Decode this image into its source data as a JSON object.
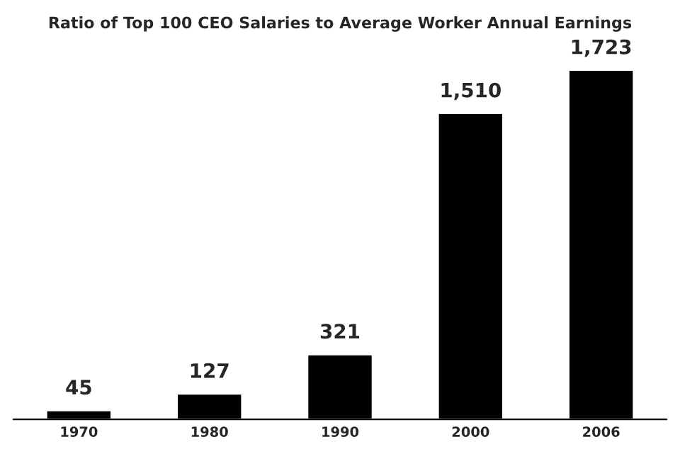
{
  "chart_data": {
    "type": "bar",
    "title": "Ratio of Top 100 CEO Salaries to Average Worker Annual Earnings",
    "categories": [
      "1970",
      "1980",
      "1990",
      "2000",
      "2006"
    ],
    "values": [
      45,
      127,
      321,
      1510,
      1723
    ],
    "value_labels": [
      "45",
      "127",
      "321",
      "1,510",
      "1,723"
    ],
    "color": "#000000",
    "grid": false
  }
}
